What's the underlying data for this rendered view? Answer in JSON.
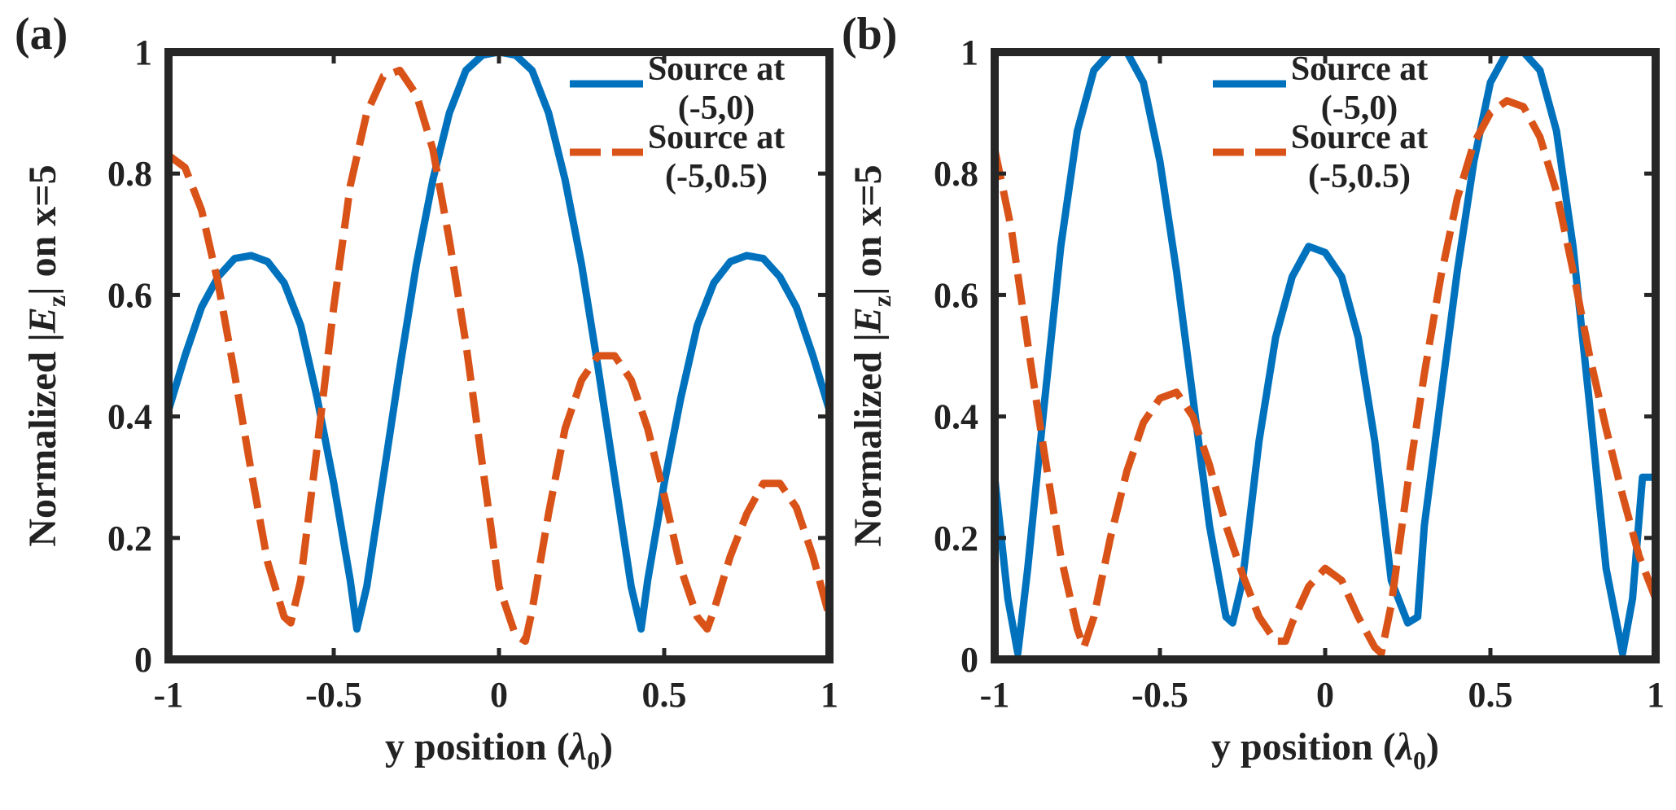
{
  "figure": {
    "panels": [
      "(a)",
      "(b)"
    ]
  },
  "colors": {
    "blue": "#0072BD",
    "orange": "#D95319",
    "axis": "#262626",
    "text": "#222222"
  },
  "chart_data": [
    {
      "type": "line",
      "panel_label": "(a)",
      "xlabel": "y position (λ0)",
      "xlabel_parts": {
        "main": "y position (",
        "symbol": "λ",
        "subscript": "0",
        "close": ")"
      },
      "ylabel": "Normalized |Ez| on x=5",
      "ylabel_parts": {
        "pre": "Normalized |",
        "var": "E",
        "subscript": "z",
        "post": "| on x=5"
      },
      "xlim": [
        -1,
        1
      ],
      "ylim": [
        0,
        1
      ],
      "xticks": [
        "-1",
        "-0.5",
        "0",
        "0.5",
        "1"
      ],
      "yticks": [
        "0",
        "0.2",
        "0.4",
        "0.6",
        "0.8",
        "1"
      ],
      "legend_position": "top-right",
      "series": [
        {
          "name": "Source at (-5,0)",
          "legend_lines": [
            "Source at",
            "(-5,0)"
          ],
          "style": "solid",
          "color": "#0072BD",
          "x": [
            -1,
            -0.95,
            -0.9,
            -0.85,
            -0.8,
            -0.75,
            -0.7,
            -0.65,
            -0.6,
            -0.55,
            -0.5,
            -0.45,
            -0.43,
            -0.4,
            -0.35,
            -0.3,
            -0.25,
            -0.2,
            -0.15,
            -0.1,
            -0.05,
            0,
            0.05,
            0.1,
            0.15,
            0.2,
            0.25,
            0.3,
            0.35,
            0.4,
            0.43,
            0.45,
            0.5,
            0.55,
            0.6,
            0.65,
            0.7,
            0.75,
            0.8,
            0.85,
            0.9,
            0.95,
            1
          ],
          "y": [
            0.41,
            0.5,
            0.58,
            0.63,
            0.66,
            0.665,
            0.655,
            0.62,
            0.55,
            0.43,
            0.29,
            0.13,
            0.05,
            0.12,
            0.3,
            0.48,
            0.65,
            0.79,
            0.9,
            0.97,
            0.995,
            1.0,
            0.995,
            0.97,
            0.9,
            0.79,
            0.65,
            0.48,
            0.3,
            0.12,
            0.05,
            0.13,
            0.29,
            0.43,
            0.55,
            0.62,
            0.655,
            0.665,
            0.66,
            0.63,
            0.58,
            0.5,
            0.41
          ]
        },
        {
          "name": "Source at (-5,0.5)",
          "legend_lines": [
            "Source at",
            "(-5,0.5)"
          ],
          "style": "dashed",
          "color": "#D95319",
          "x": [
            -1,
            -0.95,
            -0.9,
            -0.85,
            -0.8,
            -0.75,
            -0.7,
            -0.65,
            -0.63,
            -0.6,
            -0.55,
            -0.5,
            -0.45,
            -0.4,
            -0.35,
            -0.3,
            -0.25,
            -0.2,
            -0.15,
            -0.1,
            -0.05,
            0,
            0.05,
            0.08,
            0.1,
            0.15,
            0.2,
            0.25,
            0.3,
            0.35,
            0.4,
            0.45,
            0.5,
            0.55,
            0.6,
            0.63,
            0.65,
            0.7,
            0.75,
            0.8,
            0.85,
            0.9,
            0.95,
            1
          ],
          "y": [
            0.83,
            0.81,
            0.74,
            0.62,
            0.47,
            0.31,
            0.16,
            0.07,
            0.06,
            0.13,
            0.35,
            0.58,
            0.78,
            0.9,
            0.96,
            0.97,
            0.93,
            0.84,
            0.69,
            0.52,
            0.32,
            0.12,
            0.04,
            0.03,
            0.08,
            0.24,
            0.38,
            0.46,
            0.5,
            0.5,
            0.46,
            0.38,
            0.27,
            0.15,
            0.07,
            0.05,
            0.08,
            0.17,
            0.24,
            0.29,
            0.29,
            0.25,
            0.17,
            0.07
          ]
        }
      ]
    },
    {
      "type": "line",
      "panel_label": "(b)",
      "xlabel": "y position (λ0)",
      "xlabel_parts": {
        "main": "y position (",
        "symbol": "λ",
        "subscript": "0",
        "close": ")"
      },
      "ylabel": "Normalized |Ez| on x=5",
      "ylabel_parts": {
        "pre": "Normalized |",
        "var": "E",
        "subscript": "z",
        "post": "| on x=5"
      },
      "xlim": [
        -1,
        1
      ],
      "ylim": [
        0,
        1
      ],
      "xticks": [
        "-1",
        "-0.5",
        "0",
        "0.5",
        "1"
      ],
      "yticks": [
        "0",
        "0.2",
        "0.4",
        "0.6",
        "0.8",
        "1"
      ],
      "legend_position": "top-right",
      "series": [
        {
          "name": "Source at (-5,0)",
          "legend_lines": [
            "Source at",
            "(-5,0)"
          ],
          "style": "solid",
          "color": "#0072BD",
          "x": [
            -1,
            -0.96,
            -0.93,
            -0.9,
            -0.85,
            -0.8,
            -0.75,
            -0.7,
            -0.65,
            -0.6,
            -0.55,
            -0.5,
            -0.45,
            -0.4,
            -0.35,
            -0.3,
            -0.28,
            -0.25,
            -0.2,
            -0.15,
            -0.1,
            -0.05,
            0,
            0.05,
            0.1,
            0.15,
            0.2,
            0.25,
            0.28,
            0.3,
            0.35,
            0.4,
            0.45,
            0.5,
            0.55,
            0.6,
            0.65,
            0.7,
            0.75,
            0.8,
            0.85,
            0.9,
            0.93,
            0.96,
            1
          ],
          "y": [
            0.3,
            0.1,
            0.01,
            0.15,
            0.42,
            0.68,
            0.87,
            0.97,
            1.0,
            1.0,
            0.95,
            0.82,
            0.64,
            0.43,
            0.22,
            0.07,
            0.06,
            0.13,
            0.36,
            0.53,
            0.63,
            0.68,
            0.67,
            0.63,
            0.53,
            0.36,
            0.13,
            0.06,
            0.07,
            0.22,
            0.43,
            0.64,
            0.82,
            0.95,
            1.0,
            1.0,
            0.97,
            0.87,
            0.68,
            0.42,
            0.15,
            0.01,
            0.1,
            0.3,
            0.3
          ]
        },
        {
          "name": "Source at (-5,0.5)",
          "legend_lines": [
            "Source at",
            "(-5,0.5)"
          ],
          "style": "dashed",
          "color": "#D95319",
          "x": [
            -1,
            -0.95,
            -0.9,
            -0.85,
            -0.8,
            -0.75,
            -0.73,
            -0.7,
            -0.65,
            -0.6,
            -0.55,
            -0.5,
            -0.45,
            -0.4,
            -0.35,
            -0.3,
            -0.25,
            -0.2,
            -0.15,
            -0.12,
            -0.1,
            -0.05,
            0,
            0.05,
            0.1,
            0.15,
            0.17,
            0.2,
            0.25,
            0.3,
            0.35,
            0.4,
            0.45,
            0.5,
            0.55,
            0.6,
            0.65,
            0.7,
            0.75,
            0.8,
            0.85,
            0.9,
            0.95,
            1
          ],
          "y": [
            0.84,
            0.71,
            0.52,
            0.34,
            0.17,
            0.05,
            0.02,
            0.07,
            0.2,
            0.31,
            0.39,
            0.43,
            0.44,
            0.4,
            0.32,
            0.22,
            0.14,
            0.07,
            0.03,
            0.03,
            0.06,
            0.12,
            0.15,
            0.13,
            0.07,
            0.02,
            0.01,
            0.09,
            0.29,
            0.47,
            0.63,
            0.76,
            0.85,
            0.9,
            0.92,
            0.91,
            0.86,
            0.77,
            0.64,
            0.5,
            0.38,
            0.27,
            0.17,
            0.1
          ]
        }
      ]
    }
  ]
}
